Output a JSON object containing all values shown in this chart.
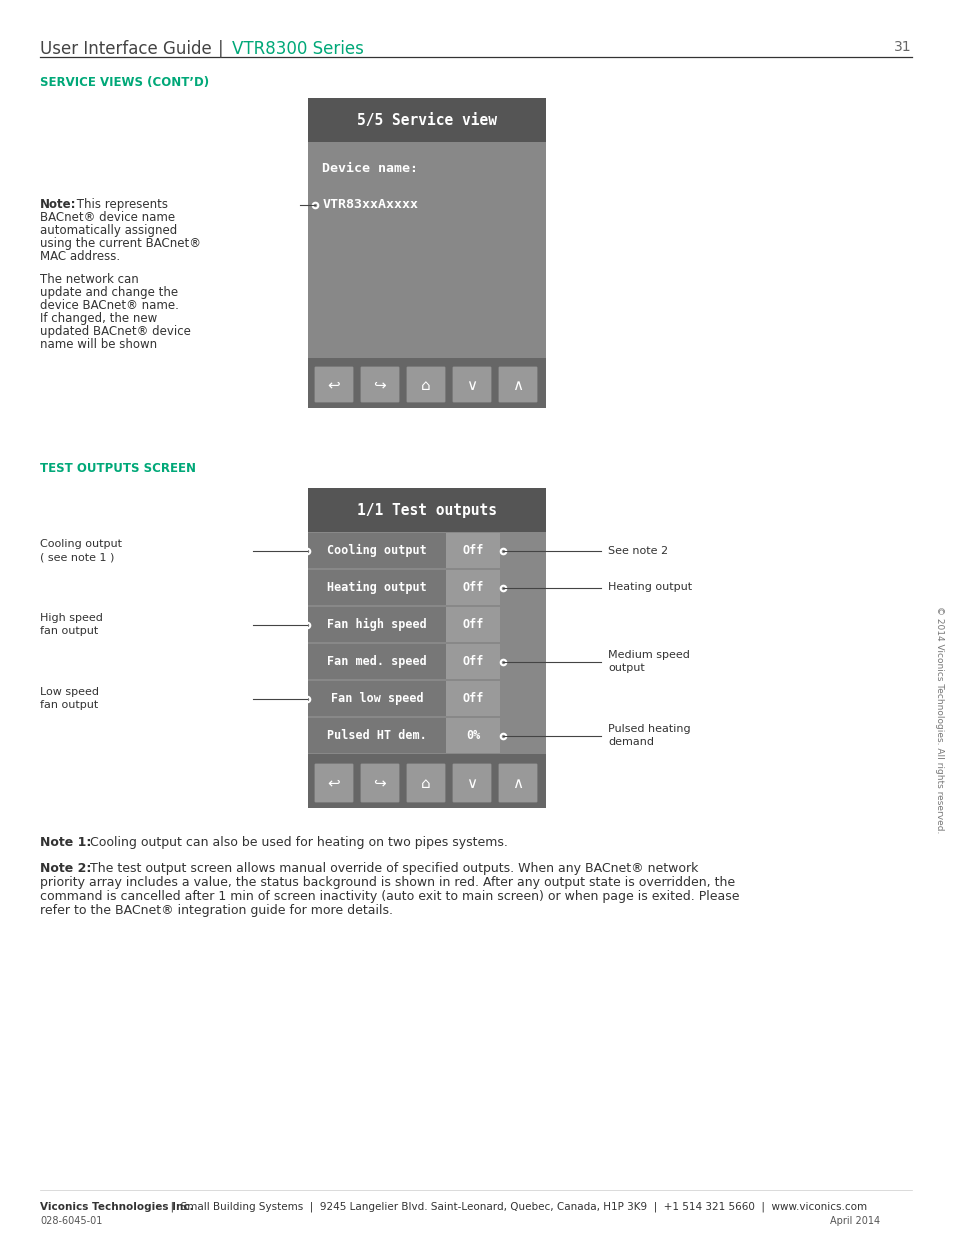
{
  "page_title_plain": "User Interface Guide ",
  "page_title_separator": "| ",
  "page_title_colored": "VTR8300 Series",
  "page_number": "31",
  "section1_title": "SERVICE VIEWS (CONT’D)",
  "screen1_title": "5/5 Service view",
  "screen1_label": "Device name:",
  "screen1_value": "VTR83xxAxxxx",
  "note1_bold": "Note:",
  "note1_lines": [
    " This represents",
    "BACnet® device name",
    "automatically assigned",
    "using the current BACnet®",
    "MAC address."
  ],
  "note2_lines": [
    "The network can",
    "update and change the",
    "device BACnet® name.",
    "If changed, the new",
    "updated BACnet® device",
    "name will be shown"
  ],
  "section2_title": "TEST OUTPUTS SCREEN",
  "screen2_title": "1/1 Test outputs",
  "rows": [
    {
      "label": "Cooling output",
      "value": "Off",
      "dot_left": true,
      "dot_right": true
    },
    {
      "label": "Heating output",
      "value": "Off",
      "dot_left": false,
      "dot_right": true
    },
    {
      "label": "Fan high speed",
      "value": "Off",
      "dot_left": true,
      "dot_right": false
    },
    {
      "label": "Fan med. speed",
      "value": "Off",
      "dot_left": false,
      "dot_right": true
    },
    {
      "label": "Fan low speed",
      "value": "Off",
      "dot_left": true,
      "dot_right": false
    },
    {
      "label": "Pulsed HT dem.",
      "value": "0%",
      "dot_left": false,
      "dot_right": true
    }
  ],
  "left_ann": [
    {
      "row": 0,
      "lines": [
        "Cooling output",
        "( see note 1 )"
      ]
    },
    {
      "row": 2,
      "lines": [
        "High speed",
        "fan output"
      ]
    },
    {
      "row": 4,
      "lines": [
        "Low speed",
        "fan output"
      ]
    }
  ],
  "right_ann": [
    {
      "row": 0,
      "lines": [
        "See note 2"
      ]
    },
    {
      "row": 1,
      "lines": [
        "Heating output"
      ]
    },
    {
      "row": 3,
      "lines": [
        "Medium speed",
        "output"
      ]
    },
    {
      "row": 5,
      "lines": [
        "Pulsed heating",
        "demand"
      ]
    }
  ],
  "footnote1_bold": "Note 1:",
  "footnote1_text": " Cooling output can also be used for heating on two pipes systems.",
  "footnote2_bold": "Note 2:",
  "footnote2_lines": [
    " The test output screen allows manual override of specified outputs. When any BACnet® network",
    "priority array includes a value, the status background is shown in red. After any output state is overridden, the",
    "command is cancelled after 1 min of screen inactivity (auto exit to main screen) or when page is exited. Please",
    "refer to the BACnet® integration guide for more details."
  ],
  "copyright": "© 2014 Viconics Technologies. All rights reserved.",
  "footer_bold": "Viconics Technologies Inc.",
  "footer_rest": "  |  Small Building Systems  |  9245 Langelier Blvd. Saint-Leonard, Quebec, Canada, H1P 3K9  |  +1 514 321 5660  |  www.viconics.com",
  "footer_code": "028-6045-01",
  "footer_date": "April 2014",
  "color_green": "#00A878",
  "color_dark_hdr": "#555555",
  "color_mid": "#888888",
  "color_lbl": "#777777",
  "color_val": "#9A9A9A",
  "color_btn": "#666666",
  "color_btn_face": "#999999",
  "color_text": "#333333",
  "color_light": "#AAAAAA"
}
